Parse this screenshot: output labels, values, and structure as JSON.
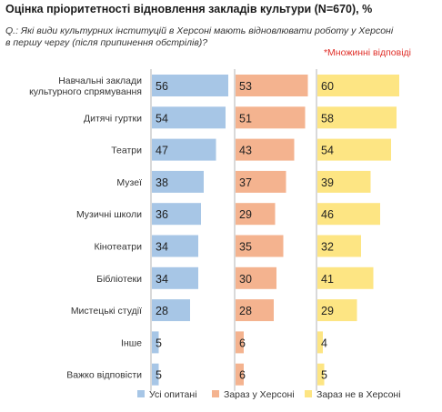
{
  "title": "Оцінка пріоритетності відновлення закладів культури (N=670), %",
  "question": "Q.: Які види культурних інституцій в Херсоні мають відновлювати роботу у Херсоні в першу чергу (після припинення обстрілів)?",
  "note": "*Множинні відповіді",
  "chart_data": {
    "type": "bar",
    "orientation": "horizontal",
    "layout": "small-multiples",
    "legend_position": "bottom",
    "grid": false,
    "title": "Оцінка пріоритетності відновлення закладів культури (N=670), %",
    "categories": [
      [
        "Навчальні заклади",
        "культурного спрямування"
      ],
      [
        "Дитячі гуртки"
      ],
      [
        "Театри"
      ],
      [
        "Музеї"
      ],
      [
        "Музичні школи"
      ],
      [
        "Кінотеатри"
      ],
      [
        "Бібліотеки"
      ],
      [
        "Мистецькі студії"
      ],
      [
        "Інше"
      ],
      [
        "Важко відповісти"
      ]
    ],
    "xlim": [
      0,
      100
    ],
    "series": [
      {
        "name": "Усі опитані",
        "color": "#a7c6e6",
        "values": [
          56,
          54,
          47,
          38,
          36,
          34,
          34,
          28,
          5,
          5
        ]
      },
      {
        "name": "Зараз у Херсоні",
        "color": "#f4b38f",
        "values": [
          53,
          51,
          43,
          37,
          29,
          35,
          30,
          28,
          6,
          6
        ]
      },
      {
        "name": "Зараз не в Херсоні",
        "color": "#fde583",
        "values": [
          60,
          58,
          54,
          39,
          46,
          32,
          41,
          29,
          4,
          5
        ]
      }
    ]
  }
}
